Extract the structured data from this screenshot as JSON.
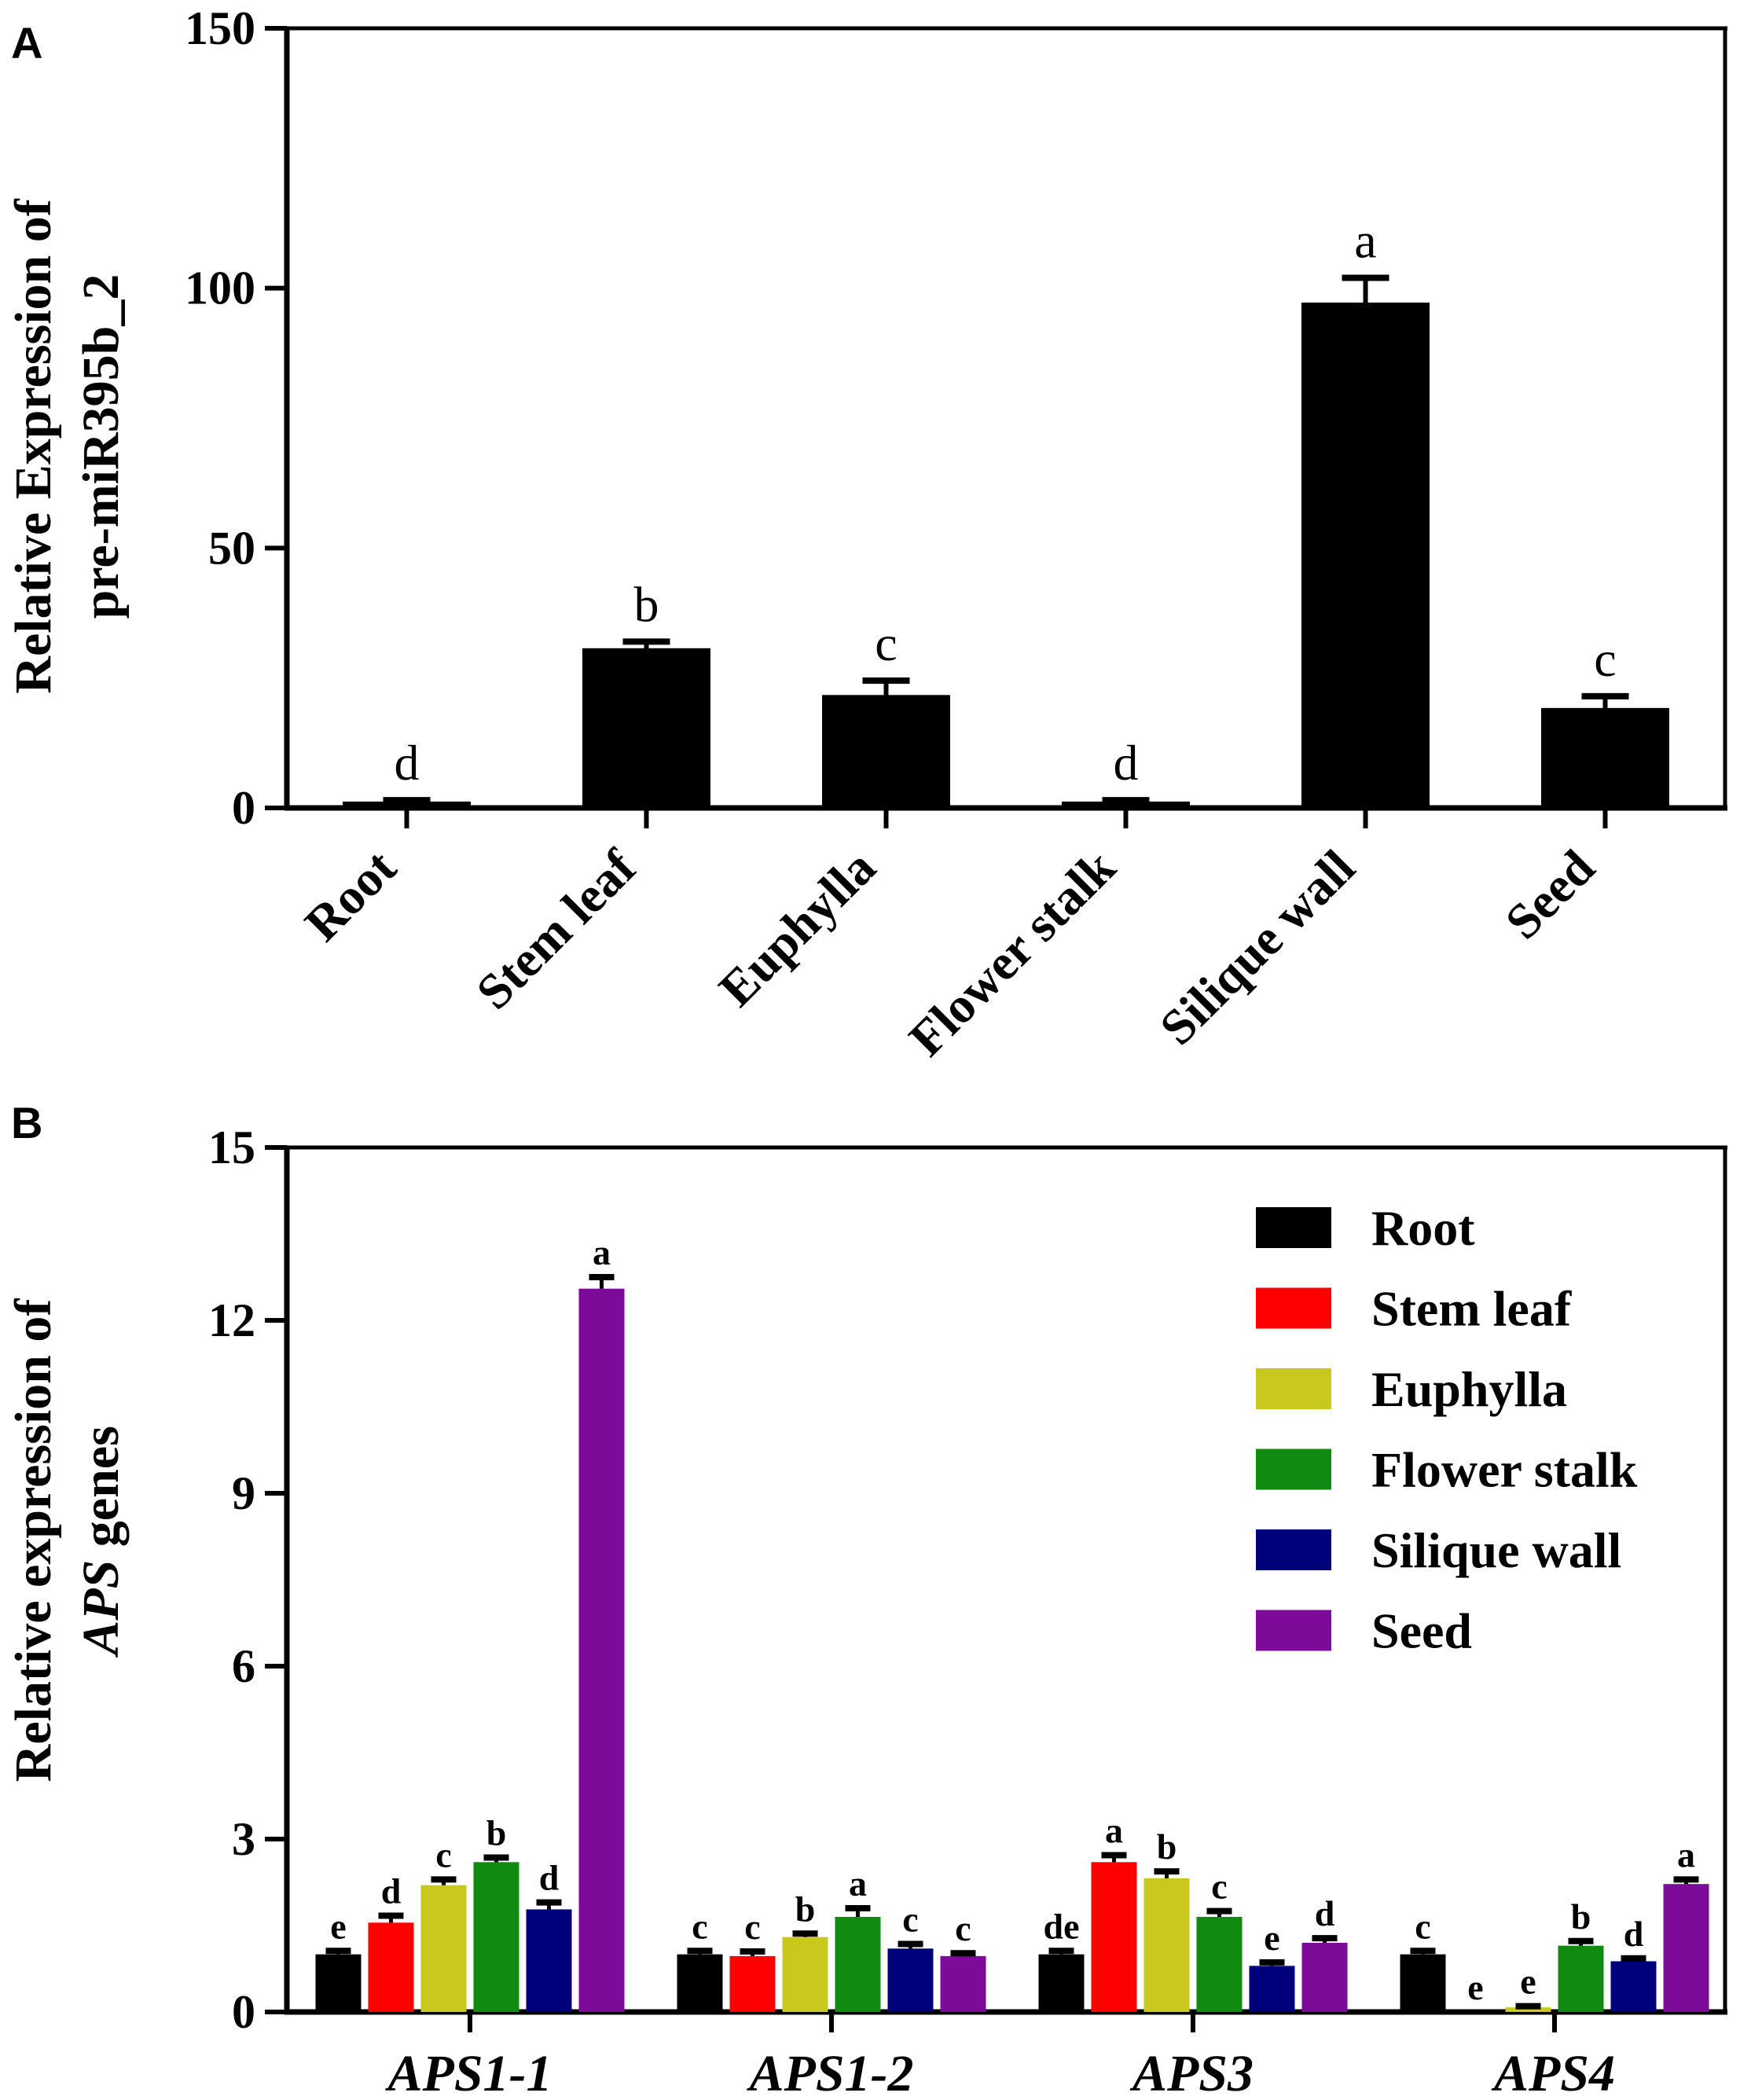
{
  "panels": {
    "a_label": "A",
    "b_label": "B"
  },
  "chart_data": [
    {
      "type": "bar",
      "panel": "A",
      "ylabel_line1": "Relative Expression of",
      "ylabel_line2": "pre-miR395b_2",
      "ylim": [
        0,
        150
      ],
      "yticks": [
        "0",
        "50",
        "100",
        "150"
      ],
      "categories": [
        "Root",
        "Stem leaf",
        "Euphylla",
        "Flower stalk",
        "Silique wall",
        "Seed"
      ],
      "values": [
        1,
        30.5,
        21.5,
        1,
        97,
        19
      ],
      "errors": [
        0.5,
        1.5,
        3,
        0.5,
        5,
        2.5
      ],
      "significance": [
        "d",
        "b",
        "c",
        "d",
        "a",
        "c"
      ],
      "color": "#000000"
    },
    {
      "type": "bar",
      "panel": "B",
      "ylabel_line1": "Relative expression of",
      "ylabel_line2_italic": "APS",
      "ylabel_line2_rest": " genes",
      "ylim": [
        0,
        15
      ],
      "yticks": [
        "0",
        "3",
        "6",
        "9",
        "12",
        "15"
      ],
      "categories": [
        "APS1-1",
        "APS1-2",
        "APS3",
        "APS4"
      ],
      "series": [
        {
          "name": "Root",
          "color": "#000000",
          "values": [
            1.0,
            1.0,
            1.0,
            1.0
          ],
          "errors": [
            0.06,
            0.06,
            0.06,
            0.06
          ],
          "significance": [
            "e",
            "c",
            "de",
            "c"
          ]
        },
        {
          "name": "Stem leaf",
          "color": "#ff0000",
          "values": [
            1.55,
            0.97,
            2.6,
            0.0
          ],
          "errors": [
            0.12,
            0.08,
            0.12,
            0.0
          ],
          "significance": [
            "d",
            "c",
            "a",
            "e"
          ]
        },
        {
          "name": "Euphylla",
          "color": "#c8c81e",
          "values": [
            2.2,
            1.3,
            2.32,
            0.08
          ],
          "errors": [
            0.1,
            0.06,
            0.12,
            0.02
          ],
          "significance": [
            "c",
            "b",
            "b",
            "e"
          ]
        },
        {
          "name": "Flower stalk",
          "color": "#118a11",
          "values": [
            2.6,
            1.65,
            1.65,
            1.15
          ],
          "errors": [
            0.08,
            0.15,
            0.1,
            0.08
          ],
          "significance": [
            "b",
            "a",
            "c",
            "b"
          ]
        },
        {
          "name": "Silique wall",
          "color": "#00007a",
          "values": [
            1.78,
            1.1,
            0.8,
            0.88
          ],
          "errors": [
            0.12,
            0.08,
            0.06,
            0.05
          ],
          "significance": [
            "d",
            "c",
            "e",
            "d"
          ]
        },
        {
          "name": "Seed",
          "color": "#7d0b99",
          "values": [
            12.55,
            0.97,
            1.2,
            2.22
          ],
          "errors": [
            0.2,
            0.05,
            0.08,
            0.08
          ],
          "significance": [
            "a",
            "c",
            "d",
            "a"
          ]
        }
      ],
      "legend_position": "top-right"
    }
  ]
}
